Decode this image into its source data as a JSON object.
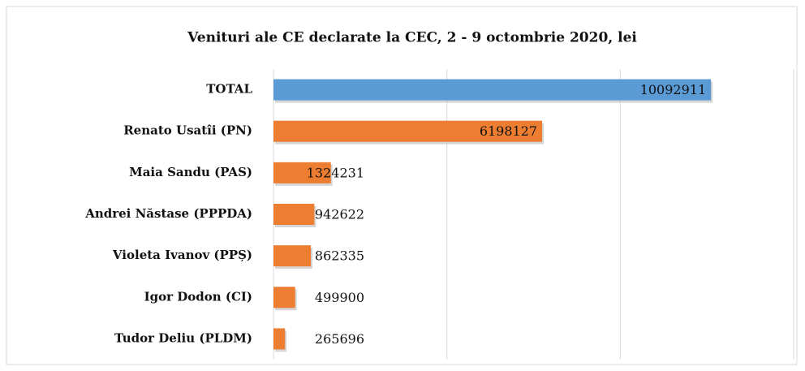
{
  "chart_data": {
    "type": "barh",
    "title": "Venituri ale CE declarate la CEC, 2 - 9 octombrie 2020, lei",
    "categories": [
      "TOTAL",
      "Renato Usatîi (PN)",
      "Maia Sandu (PAS)",
      "Andrei Năstase (PPPDA)",
      "Violeta Ivanov (PPȘ)",
      "Igor Dodon (CI)",
      "Tudor Deliu (PLDM)"
    ],
    "values": [
      10092911,
      6198127,
      1324231,
      942622,
      862335,
      499900,
      265696
    ],
    "colors": [
      "#5b9bd5",
      "#ed7d31",
      "#ed7d31",
      "#ed7d31",
      "#ed7d31",
      "#ed7d31",
      "#ed7d31"
    ],
    "xlim": [
      0,
      12000000
    ],
    "xticks": [
      0,
      4000000,
      8000000,
      12000000
    ],
    "grid": true
  }
}
